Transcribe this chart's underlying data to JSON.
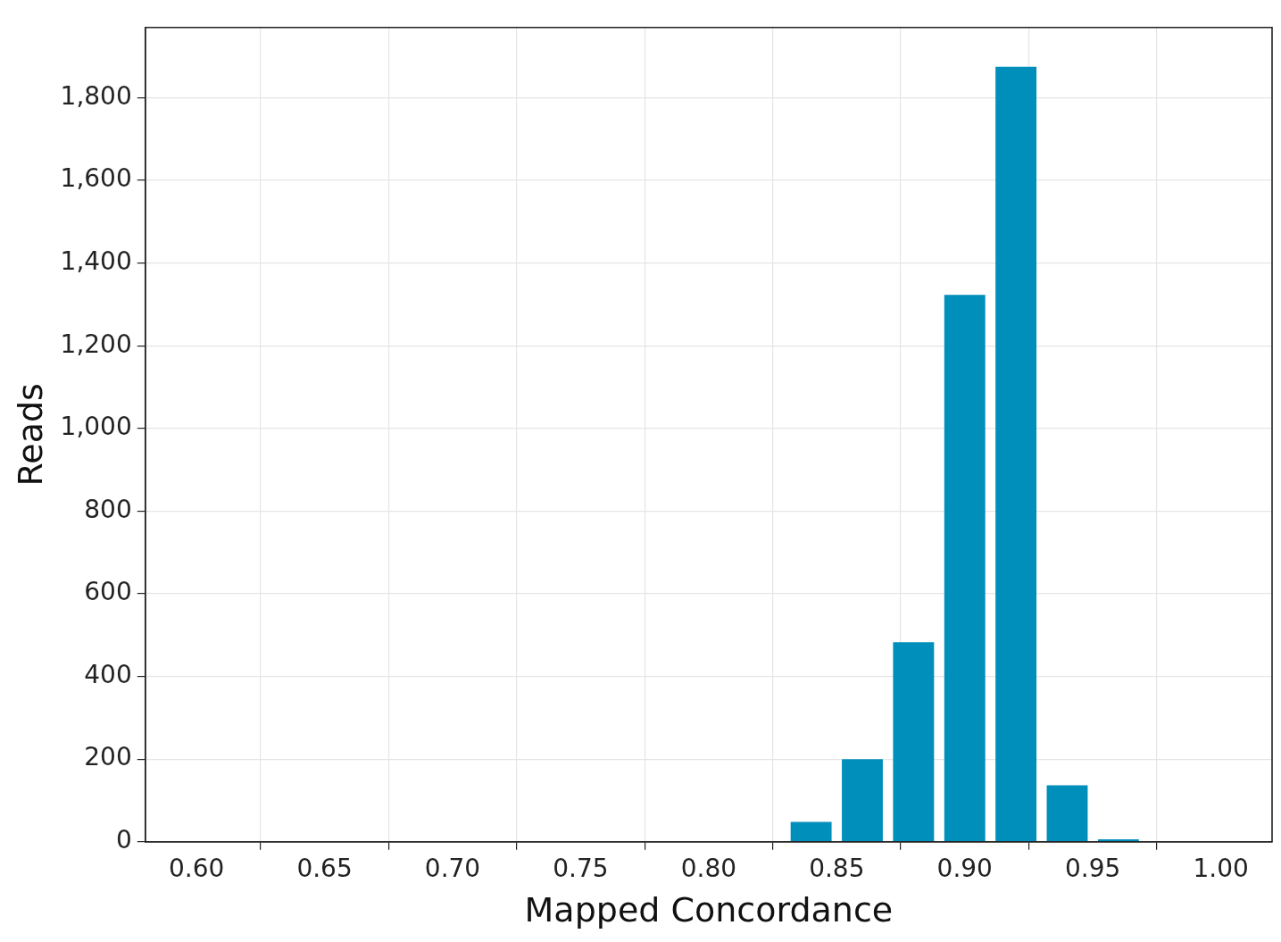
{
  "chart_data": {
    "type": "histogram",
    "xlabel": "Mapped Concordance",
    "ylabel": "Reads",
    "bins": [
      0.83,
      0.85,
      0.87,
      0.89,
      0.91,
      0.93,
      0.95,
      0.97
    ],
    "values": [
      48,
      200,
      483,
      1323,
      1875,
      137,
      6
    ],
    "color": "#008fbb",
    "xlim": [
      0.58,
      1.02
    ],
    "ylim": [
      0,
      1970
    ],
    "xticks": [
      {
        "value": 0.6,
        "label": "0.60"
      },
      {
        "value": 0.65,
        "label": "0.65"
      },
      {
        "value": 0.7,
        "label": "0.70"
      },
      {
        "value": 0.75,
        "label": "0.75"
      },
      {
        "value": 0.8,
        "label": "0.80"
      },
      {
        "value": 0.85,
        "label": "0.85"
      },
      {
        "value": 0.9,
        "label": "0.90"
      },
      {
        "value": 0.95,
        "label": "0.95"
      },
      {
        "value": 1.0,
        "label": "1.00"
      }
    ],
    "yticks": [
      0,
      200,
      400,
      600,
      800,
      {
        "value": 1000,
        "label": "1,000"
      },
      {
        "value": 1200,
        "label": "1,200"
      },
      {
        "value": 1400,
        "label": "1,400"
      },
      {
        "value": 1600,
        "label": "1,600"
      },
      {
        "value": 1800,
        "label": "1,800"
      }
    ],
    "grid": true
  }
}
